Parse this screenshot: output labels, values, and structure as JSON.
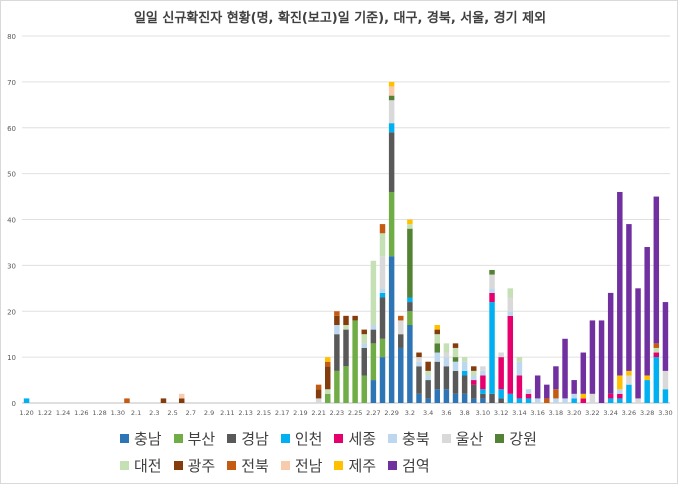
{
  "chart_data": {
    "type": "bar",
    "stacked": true,
    "title": "일일 신규확진자 현황(명, 확진(보고)일 기준), 대구, 경북, 서울, 경기 제외",
    "xlabel": "",
    "ylabel": "",
    "ylim": [
      0,
      80
    ],
    "yticks": [
      0,
      10,
      20,
      30,
      40,
      50,
      60,
      70,
      80
    ],
    "grid": true,
    "legend_position": "bottom",
    "categories": [
      "1.20",
      "1.21",
      "1.22",
      "1.23",
      "1.24",
      "1.25",
      "1.26",
      "1.27",
      "1.28",
      "1.29",
      "1.30",
      "1.31",
      "2.1",
      "2.2",
      "2.3",
      "2.4",
      "2.5",
      "2.6",
      "2.7",
      "2.8",
      "2.9",
      "2.10",
      "2.11",
      "2.12",
      "2.13",
      "2.14",
      "2.15",
      "2.16",
      "2.17",
      "2.18",
      "2.19",
      "2.20",
      "2.21",
      "2.22",
      "2.23",
      "2.24",
      "2.25",
      "2.26",
      "2.27",
      "2.28",
      "2.29",
      "3.1",
      "3.2",
      "3.3",
      "3.4",
      "3.5",
      "3.6",
      "3.7",
      "3.8",
      "3.9",
      "3.10",
      "3.11",
      "3.12",
      "3.13",
      "3.14",
      "3.15",
      "3.16",
      "3.17",
      "3.18",
      "3.19",
      "3.20",
      "3.21",
      "3.22",
      "3.23",
      "3.24",
      "3.25",
      "3.26",
      "3.27",
      "3.28",
      "3.29",
      "3.30"
    ],
    "xtick_labels": [
      "1.20",
      "1.22",
      "1.24",
      "1.26",
      "1.28",
      "1.30",
      "2.1",
      "2.3",
      "2.5",
      "2.7",
      "2.9",
      "2.11",
      "2.13",
      "2.15",
      "2.17",
      "2.19",
      "2.21",
      "2.23",
      "2.25",
      "2.27",
      "2.29",
      "3.2",
      "3.4",
      "3.6",
      "3.8",
      "3.10",
      "3.12",
      "3.14",
      "3.16",
      "3.18",
      "3.20",
      "3.22",
      "3.24",
      "3.26",
      "3.28",
      "3.30"
    ],
    "series": [
      {
        "name": "충남",
        "color": "#2e75b6",
        "values": [
          0,
          0,
          0,
          0,
          0,
          0,
          0,
          0,
          0,
          0,
          0,
          0,
          0,
          0,
          0,
          0,
          0,
          0,
          0,
          0,
          0,
          0,
          0,
          0,
          0,
          0,
          0,
          0,
          0,
          0,
          0,
          0,
          0,
          0,
          0,
          0,
          0,
          0,
          5,
          10,
          32,
          12,
          17,
          2,
          1,
          3,
          3,
          2,
          2,
          1,
          1,
          0,
          0,
          0,
          0,
          0,
          0,
          0,
          0,
          0,
          0,
          0,
          0,
          0,
          0,
          0,
          0,
          0,
          0,
          0,
          0
        ]
      },
      {
        "name": "부산",
        "color": "#70ad47",
        "values": [
          0,
          0,
          0,
          0,
          0,
          0,
          0,
          0,
          0,
          0,
          0,
          0,
          0,
          0,
          0,
          0,
          0,
          0,
          0,
          0,
          0,
          0,
          0,
          0,
          0,
          0,
          0,
          0,
          0,
          0,
          0,
          0,
          0,
          2,
          7,
          8,
          18,
          6,
          8,
          4,
          14,
          0,
          3,
          0,
          0,
          0,
          0,
          0,
          0,
          0,
          0,
          0,
          0,
          0,
          0,
          0,
          0,
          0,
          0,
          0,
          0,
          0,
          0,
          0,
          0,
          0,
          0,
          0,
          0,
          0,
          0
        ]
      },
      {
        "name": "경남",
        "color": "#595959",
        "values": [
          0,
          0,
          0,
          0,
          0,
          0,
          0,
          0,
          0,
          0,
          0,
          0,
          0,
          0,
          0,
          0,
          0,
          0,
          0,
          0,
          0,
          0,
          0,
          0,
          0,
          0,
          0,
          0,
          0,
          0,
          0,
          0,
          0,
          0,
          8,
          8,
          0,
          6,
          3,
          9,
          13,
          3,
          2,
          6,
          4,
          6,
          5,
          5,
          4,
          3,
          1,
          2,
          1,
          0,
          0,
          0,
          0,
          0,
          0,
          0,
          0,
          0,
          0,
          0,
          0,
          0,
          0,
          0,
          0,
          0,
          0
        ]
      },
      {
        "name": "인천",
        "color": "#00b0f0",
        "values": [
          1,
          0,
          0,
          0,
          0,
          0,
          0,
          0,
          0,
          0,
          0,
          0,
          0,
          0,
          0,
          0,
          0,
          0,
          0,
          0,
          0,
          0,
          0,
          0,
          0,
          0,
          0,
          0,
          0,
          0,
          0,
          0,
          0,
          0,
          0,
          0,
          0,
          0,
          0,
          1,
          2,
          0,
          1,
          0,
          0,
          0,
          0,
          0,
          1,
          0,
          1,
          20,
          2,
          2,
          1,
          1,
          0,
          0,
          0,
          0,
          1,
          0,
          0,
          0,
          1,
          1,
          4,
          0,
          5,
          10,
          3
        ]
      },
      {
        "name": "세종",
        "color": "#e6006e",
        "values": [
          0,
          0,
          0,
          0,
          0,
          0,
          0,
          0,
          0,
          0,
          0,
          0,
          0,
          0,
          0,
          0,
          0,
          0,
          0,
          0,
          0,
          0,
          0,
          0,
          0,
          0,
          0,
          0,
          0,
          0,
          0,
          0,
          0,
          0,
          0,
          0,
          0,
          0,
          0,
          0,
          0,
          0,
          0,
          0,
          0,
          0,
          0,
          0,
          0,
          1,
          3,
          2,
          7,
          17,
          5,
          1,
          0,
          0,
          0,
          0,
          0,
          1,
          0,
          0,
          1,
          1,
          0,
          0,
          0,
          1,
          0
        ]
      },
      {
        "name": "충북",
        "color": "#bdd7ee",
        "values": [
          0,
          0,
          0,
          0,
          0,
          0,
          0,
          0,
          0,
          0,
          0,
          0,
          0,
          0,
          0,
          0,
          0,
          0,
          0,
          0,
          0,
          0,
          0,
          0,
          0,
          0,
          0,
          0,
          0,
          0,
          0,
          0,
          0,
          0,
          2,
          0,
          0,
          1,
          1,
          1,
          0,
          0,
          0,
          1,
          1,
          2,
          2,
          2,
          2,
          1,
          1,
          1,
          0,
          1,
          3,
          1,
          1,
          0,
          1,
          1,
          1,
          0,
          0,
          0,
          0,
          1,
          0,
          0,
          0,
          0,
          0
        ]
      },
      {
        "name": "울산",
        "color": "#d9d9d9",
        "values": [
          0,
          0,
          0,
          0,
          0,
          0,
          0,
          0,
          0,
          0,
          0,
          0,
          0,
          0,
          0,
          0,
          0,
          0,
          0,
          0,
          0,
          0,
          0,
          0,
          0,
          0,
          0,
          0,
          0,
          0,
          0,
          0,
          1,
          0,
          0,
          0,
          0,
          0,
          0,
          7,
          5,
          3,
          0,
          1,
          0,
          0,
          1,
          0,
          0,
          0,
          1,
          3,
          1,
          3,
          0,
          0,
          0,
          0,
          0,
          0,
          0,
          0,
          2,
          0,
          0,
          0,
          2,
          1,
          0,
          0,
          4
        ]
      },
      {
        "name": "강원",
        "color": "#548235",
        "values": [
          0,
          0,
          0,
          0,
          0,
          0,
          0,
          0,
          0,
          0,
          0,
          0,
          0,
          0,
          0,
          0,
          0,
          0,
          0,
          0,
          0,
          0,
          0,
          0,
          0,
          0,
          0,
          0,
          0,
          0,
          0,
          0,
          0,
          0,
          0,
          0,
          0,
          0,
          0,
          0,
          1,
          0,
          15,
          0,
          0,
          2,
          0,
          1,
          0,
          0,
          0,
          1,
          0,
          0,
          0,
          0,
          0,
          0,
          0,
          0,
          0,
          0,
          0,
          0,
          0,
          0,
          0,
          0,
          0,
          0,
          0
        ]
      },
      {
        "name": "대전",
        "color": "#c5e0b4",
        "values": [
          0,
          0,
          0,
          0,
          0,
          0,
          0,
          0,
          0,
          0,
          0,
          0,
          0,
          0,
          0,
          0,
          0,
          0,
          0,
          0,
          0,
          0,
          0,
          0,
          0,
          0,
          0,
          0,
          0,
          0,
          0,
          0,
          0,
          1,
          0,
          1,
          0,
          2,
          14,
          5,
          0,
          0,
          1,
          0,
          1,
          2,
          2,
          2,
          1,
          1,
          0,
          0,
          0,
          2,
          1,
          0,
          0,
          0,
          0,
          0,
          0,
          0,
          0,
          0,
          0,
          0,
          0,
          0,
          0,
          1,
          0
        ]
      },
      {
        "name": "광주",
        "color": "#843c0c",
        "values": [
          0,
          0,
          0,
          0,
          0,
          0,
          0,
          0,
          0,
          0,
          0,
          0,
          0,
          0,
          0,
          1,
          0,
          1,
          0,
          0,
          0,
          0,
          0,
          0,
          0,
          0,
          0,
          0,
          0,
          0,
          0,
          0,
          2,
          5,
          2,
          2,
          1,
          1,
          0,
          0,
          0,
          0,
          0,
          1,
          2,
          1,
          0,
          1,
          0,
          1,
          0,
          0,
          0,
          0,
          0,
          0,
          0,
          0,
          0,
          0,
          0,
          0,
          0,
          0,
          0,
          0,
          0,
          0,
          0,
          0,
          0
        ]
      },
      {
        "name": "전북",
        "color": "#c55a11",
        "values": [
          0,
          0,
          0,
          0,
          0,
          0,
          0,
          0,
          0,
          0,
          0,
          1,
          0,
          0,
          0,
          0,
          0,
          0,
          0,
          0,
          0,
          0,
          0,
          0,
          0,
          0,
          0,
          0,
          0,
          0,
          0,
          0,
          1,
          1,
          1,
          0,
          0,
          0,
          0,
          2,
          0,
          1,
          0,
          0,
          0,
          0,
          0,
          0,
          0,
          0,
          0,
          0,
          0,
          0,
          0,
          0,
          0,
          1,
          2,
          0,
          0,
          0,
          0,
          0,
          0,
          0,
          0,
          0,
          0,
          1,
          0
        ]
      },
      {
        "name": "전남",
        "color": "#f8cbad",
        "values": [
          0,
          0,
          0,
          0,
          0,
          0,
          0,
          0,
          0,
          0,
          0,
          0,
          0,
          0,
          0,
          0,
          0,
          1,
          0,
          0,
          0,
          0,
          0,
          0,
          0,
          0,
          0,
          0,
          0,
          0,
          0,
          0,
          0,
          0,
          0,
          0,
          0,
          0,
          0,
          0,
          2,
          0,
          0,
          0,
          0,
          0,
          0,
          0,
          0,
          0,
          0,
          0,
          0,
          0,
          0,
          0,
          0,
          0,
          0,
          0,
          0,
          0,
          0,
          0,
          0,
          0,
          0,
          0,
          0,
          0,
          0
        ]
      },
      {
        "name": "제주",
        "color": "#ffc000",
        "values": [
          0,
          0,
          0,
          0,
          0,
          0,
          0,
          0,
          0,
          0,
          0,
          0,
          0,
          0,
          0,
          0,
          0,
          0,
          0,
          0,
          0,
          0,
          0,
          0,
          0,
          0,
          0,
          0,
          0,
          0,
          0,
          0,
          0,
          1,
          0,
          0,
          0,
          0,
          0,
          0,
          1,
          0,
          1,
          0,
          0,
          1,
          0,
          0,
          0,
          0,
          0,
          0,
          0,
          0,
          0,
          0,
          0,
          0,
          0,
          0,
          0,
          1,
          0,
          0,
          0,
          3,
          1,
          0,
          1,
          0,
          0
        ]
      },
      {
        "name": "검역",
        "color": "#7030a0",
        "values": [
          0,
          0,
          0,
          0,
          0,
          0,
          0,
          0,
          0,
          0,
          0,
          0,
          0,
          0,
          0,
          0,
          0,
          0,
          0,
          0,
          0,
          0,
          0,
          0,
          0,
          0,
          0,
          0,
          0,
          0,
          0,
          0,
          0,
          0,
          0,
          0,
          0,
          0,
          0,
          0,
          0,
          0,
          0,
          0,
          0,
          0,
          0,
          0,
          0,
          0,
          0,
          0,
          0,
          0,
          0,
          0,
          5,
          3,
          5,
          13,
          3,
          9,
          16,
          18,
          22,
          40,
          32,
          24,
          28,
          32,
          15
        ]
      }
    ]
  }
}
